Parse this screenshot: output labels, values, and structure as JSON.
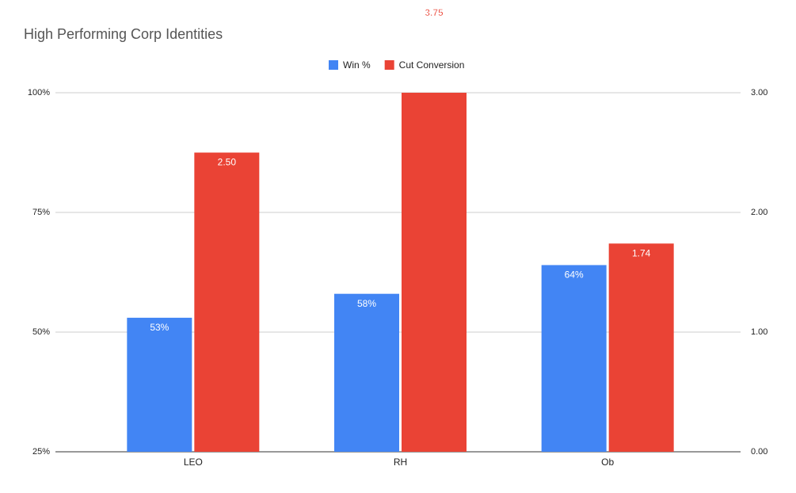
{
  "chart_data": {
    "type": "bar",
    "title": "High Performing Corp Identities",
    "categories": [
      "LEO",
      "RH",
      "Ob"
    ],
    "series": [
      {
        "name": "Win %",
        "color": "#4285f4",
        "values": [
          53,
          58,
          64
        ],
        "value_labels": [
          "53%",
          "58%",
          "64%"
        ]
      },
      {
        "name": "Cut Conversion",
        "color": "#ea4335",
        "axis": "y2",
        "values": [
          2.5,
          3.75,
          1.74
        ],
        "value_labels": [
          "2.50",
          "3.75",
          "1.74"
        ]
      }
    ],
    "ylim": [
      25,
      100
    ],
    "yticks": [
      {
        "value": 25,
        "label": "25%"
      },
      {
        "value": 50,
        "label": "50%"
      },
      {
        "value": 75,
        "label": "75%"
      },
      {
        "value": 100,
        "label": "100%"
      }
    ],
    "y2lim": [
      0,
      3
    ],
    "y2ticks": [
      {
        "value": 0,
        "label": "0.00"
      },
      {
        "value": 1,
        "label": "1.00"
      },
      {
        "value": 2,
        "label": "2.00"
      },
      {
        "value": 3,
        "label": "3.00"
      }
    ],
    "grid": true,
    "legend": "top"
  }
}
